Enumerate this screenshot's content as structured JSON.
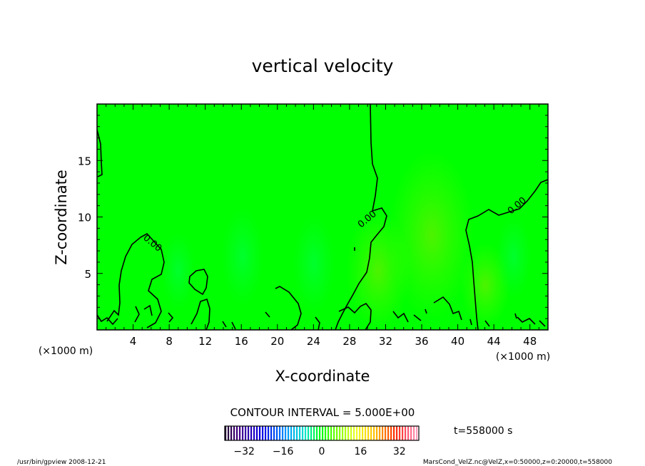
{
  "chart_data": {
    "type": "heatmap",
    "title": "vertical velocity",
    "xlabel": "X-coordinate",
    "ylabel": "Z-coordinate",
    "x_unit": "(×1000 m)",
    "z_unit": "(×1000 m)",
    "xlim": [
      0,
      50
    ],
    "ylim": [
      0,
      20
    ],
    "x_ticks": [
      4,
      8,
      12,
      16,
      20,
      24,
      28,
      32,
      36,
      40,
      44,
      48
    ],
    "y_ticks": [
      5,
      10,
      15
    ],
    "contour_label": "0.00",
    "contour_interval_text": "CONTOUR INTERVAL = 5.000E+00",
    "colorbar": {
      "range": [
        -40,
        40
      ],
      "ticks": [
        -32,
        -16,
        0,
        16,
        32
      ]
    },
    "time_text": "t=558000 s",
    "grid": false,
    "legend": "bottom-center colorbar"
  },
  "footer": {
    "left": "/usr/bin/gpview   2008-12-21",
    "right": "MarsCond_VelZ.nc@VelZ,x=0:50000,z=0:20000,t=558000"
  },
  "colors": {
    "background_field": "#00ff00",
    "contour": "#000000"
  }
}
